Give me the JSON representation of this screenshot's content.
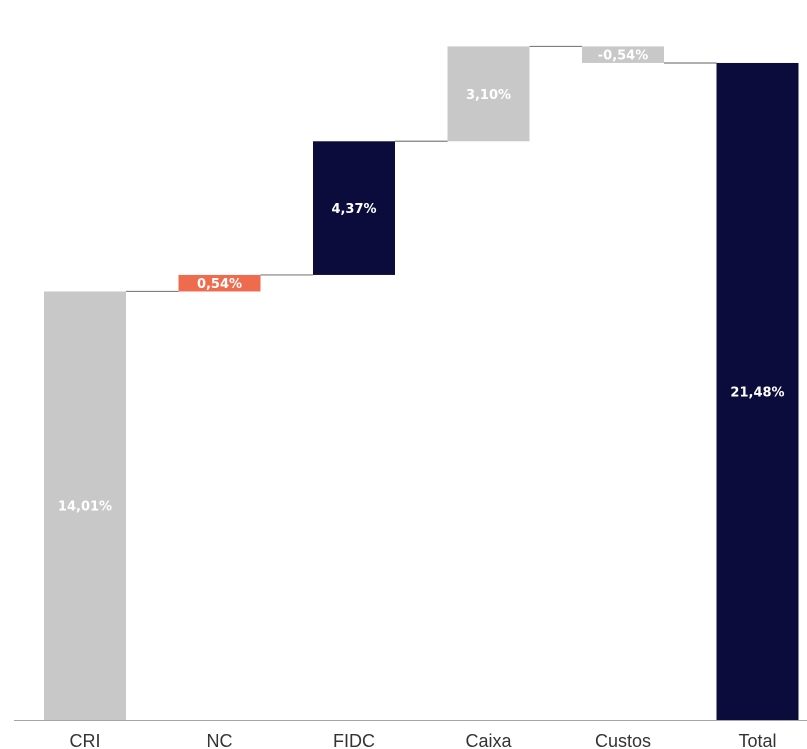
{
  "chart_data": {
    "type": "waterfall",
    "categories": [
      "CRI",
      "NC",
      "FIDC",
      "Caixa",
      "Custos",
      "Total"
    ],
    "values": [
      14.01,
      0.54,
      4.37,
      3.1,
      -0.54,
      21.48
    ],
    "labels": [
      "14,01%",
      "0,54%",
      "4,37%",
      "3,10%",
      "-0,54%",
      "21,48%"
    ],
    "kinds": [
      "gray",
      "red",
      "navy",
      "gray",
      "gray",
      "navy"
    ],
    "ylim": [
      0,
      22.1
    ],
    "title": "",
    "xlabel": "",
    "ylabel": "",
    "grid": false,
    "legend": "none",
    "colors": {
      "gray": "#c8c8c8",
      "red": "#ef6b4e",
      "navy": "#0c0c3c",
      "connector": "#7f7f7f",
      "axis": "#a6a6a6",
      "label_on_gray": "#ffffff",
      "label_on_navy": "#ffffff",
      "label_on_red": "#ffffff"
    }
  }
}
